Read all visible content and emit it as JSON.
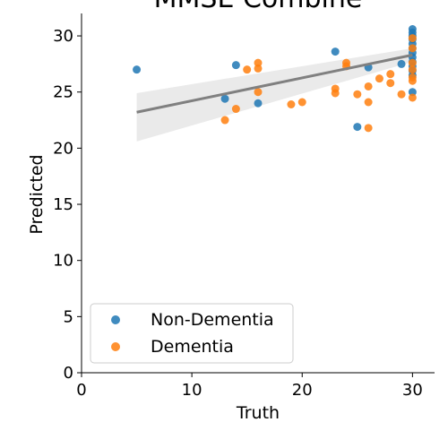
{
  "chart_data": {
    "type": "scatter",
    "title": "MMSE Combine",
    "xlabel": "Truth",
    "ylabel": "Predicted",
    "xlim": [
      0,
      32
    ],
    "ylim": [
      0,
      32
    ],
    "xticks": [
      "0",
      "10",
      "20",
      "30"
    ],
    "yticks": [
      "0",
      "5",
      "10",
      "15",
      "20",
      "25",
      "30"
    ],
    "legend_position": "lower-left",
    "series": [
      {
        "name": "Non-Dementia",
        "color": "#1f77b4",
        "points": [
          [
            5,
            27.0
          ],
          [
            13,
            24.4
          ],
          [
            14,
            27.4
          ],
          [
            16,
            24.0
          ],
          [
            23,
            28.6
          ],
          [
            25,
            21.9
          ],
          [
            26,
            27.2
          ],
          [
            29,
            27.5
          ],
          [
            30,
            30.6
          ],
          [
            30,
            30.3
          ],
          [
            30,
            30.0
          ],
          [
            30,
            29.7
          ],
          [
            30,
            29.3
          ],
          [
            30,
            28.9
          ],
          [
            30,
            28.5
          ],
          [
            30,
            28.1
          ],
          [
            30,
            27.7
          ],
          [
            30,
            27.3
          ],
          [
            30,
            26.9
          ],
          [
            30,
            26.5
          ],
          [
            30,
            25.0
          ]
        ]
      },
      {
        "name": "Dementia",
        "color": "#ff7f0e",
        "points": [
          [
            13,
            22.5
          ],
          [
            14,
            23.5
          ],
          [
            15,
            27.0
          ],
          [
            16,
            27.6
          ],
          [
            16,
            27.1
          ],
          [
            16,
            25.0
          ],
          [
            19,
            23.9
          ],
          [
            20,
            24.1
          ],
          [
            23,
            25.3
          ],
          [
            23,
            24.9
          ],
          [
            24,
            27.6
          ],
          [
            24,
            27.3
          ],
          [
            25,
            24.8
          ],
          [
            26,
            25.5
          ],
          [
            26,
            24.1
          ],
          [
            26,
            21.8
          ],
          [
            27,
            26.2
          ],
          [
            28,
            26.6
          ],
          [
            28,
            25.8
          ],
          [
            29,
            24.8
          ],
          [
            30,
            29.8
          ],
          [
            30,
            28.9
          ],
          [
            30,
            27.6
          ],
          [
            30,
            27.0
          ],
          [
            30,
            26.3
          ],
          [
            30,
            26.0
          ],
          [
            30,
            24.5
          ]
        ]
      }
    ],
    "regression": {
      "x_start": 5,
      "y_start": 23.2,
      "x_end": 30,
      "y_end": 28.3,
      "line_color": "#808080",
      "band_color": "#dcdcdc",
      "band_lower": [
        [
          5,
          20.6
        ],
        [
          30,
          27.7
        ]
      ],
      "band_upper": [
        [
          5,
          24.9
        ],
        [
          30,
          28.9
        ]
      ]
    }
  }
}
